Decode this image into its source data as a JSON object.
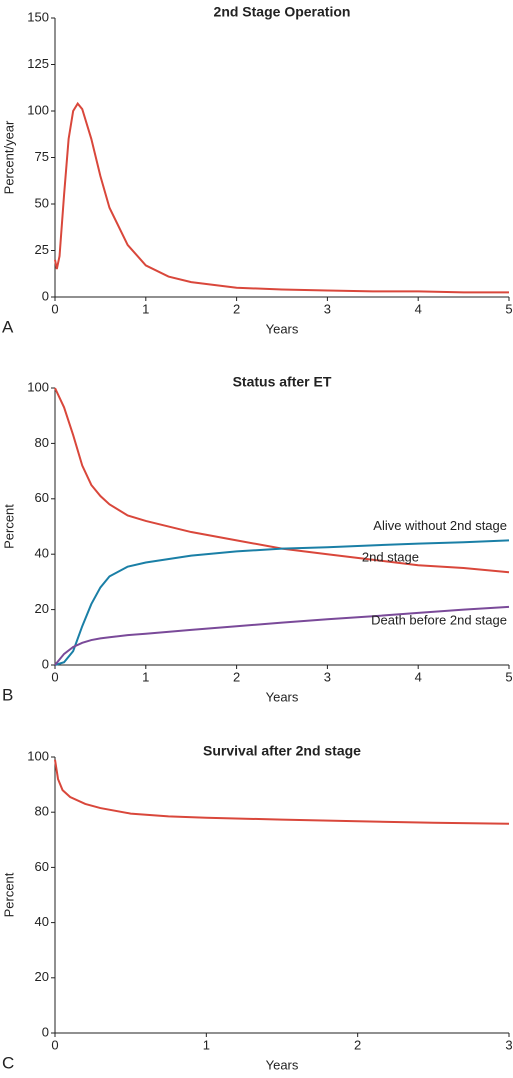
{
  "chart_data": [
    {
      "type": "line",
      "panel_label": "A",
      "title": "2nd Stage Operation",
      "xlabel": "Years",
      "ylabel": "Percent/year",
      "x": [
        0,
        0.02,
        0.05,
        0.1,
        0.15,
        0.2,
        0.25,
        0.3,
        0.4,
        0.5,
        0.6,
        0.8,
        1,
        1.25,
        1.5,
        2,
        2.5,
        3,
        3.5,
        4,
        4.5,
        5
      ],
      "values": [
        20,
        15,
        22,
        55,
        85,
        100,
        104,
        101,
        85,
        65,
        48,
        28,
        17,
        11,
        8,
        5,
        4,
        3.5,
        3,
        3,
        2.5,
        2.5
      ],
      "color": "#d9473b",
      "xlim": [
        0,
        5
      ],
      "xticks": [
        0,
        1,
        2,
        3,
        4,
        5
      ],
      "ylim": [
        0,
        150
      ],
      "yticks": [
        0,
        25,
        50,
        75,
        100,
        125,
        150
      ]
    },
    {
      "type": "line",
      "panel_label": "B",
      "title": "Status after ET",
      "xlabel": "Years",
      "ylabel": "Percent",
      "x": [
        0,
        0.1,
        0.2,
        0.3,
        0.4,
        0.5,
        0.6,
        0.8,
        1,
        1.5,
        2,
        2.5,
        3,
        3.5,
        4,
        4.5,
        5
      ],
      "series": [
        {
          "name": "2nd stage",
          "color": "#d9473b",
          "values": [
            100,
            93,
            83,
            72,
            65,
            61,
            58,
            54,
            52,
            48,
            45,
            42,
            40,
            38,
            36,
            35,
            33.5
          ]
        },
        {
          "name": "Alive without 2nd stage",
          "color": "#1a7fa6",
          "values": [
            0,
            1,
            5,
            14,
            22,
            28,
            32,
            35.5,
            37,
            39.5,
            41,
            42,
            42.5,
            43.2,
            43.8,
            44.3,
            45
          ]
        },
        {
          "name": "Death before 2nd stage",
          "color": "#7a4a99",
          "values": [
            0,
            4,
            6.5,
            8,
            9,
            9.6,
            10,
            10.8,
            11.3,
            12.7,
            14,
            15.3,
            16.5,
            17.6,
            18.8,
            20,
            21
          ]
        }
      ],
      "xlim": [
        0,
        5
      ],
      "xticks": [
        0,
        1,
        2,
        3,
        4,
        5
      ],
      "ylim": [
        0,
        100
      ],
      "yticks": [
        0,
        20,
        40,
        60,
        80,
        100
      ]
    },
    {
      "type": "line",
      "panel_label": "C",
      "title": "Survival after 2nd stage",
      "xlabel": "Years",
      "ylabel": "Percent",
      "x": [
        0,
        0.02,
        0.05,
        0.1,
        0.2,
        0.3,
        0.5,
        0.75,
        1,
        1.5,
        2,
        2.5,
        3
      ],
      "values": [
        99,
        92,
        88,
        85.5,
        83,
        81.5,
        79.5,
        78.5,
        78,
        77.3,
        76.7,
        76.2,
        75.8
      ],
      "color": "#d9473b",
      "xlim": [
        0,
        3
      ],
      "xticks": [
        0,
        1,
        2,
        3
      ],
      "ylim": [
        0,
        100
      ],
      "yticks": [
        0,
        20,
        40,
        60,
        80,
        100
      ]
    }
  ]
}
